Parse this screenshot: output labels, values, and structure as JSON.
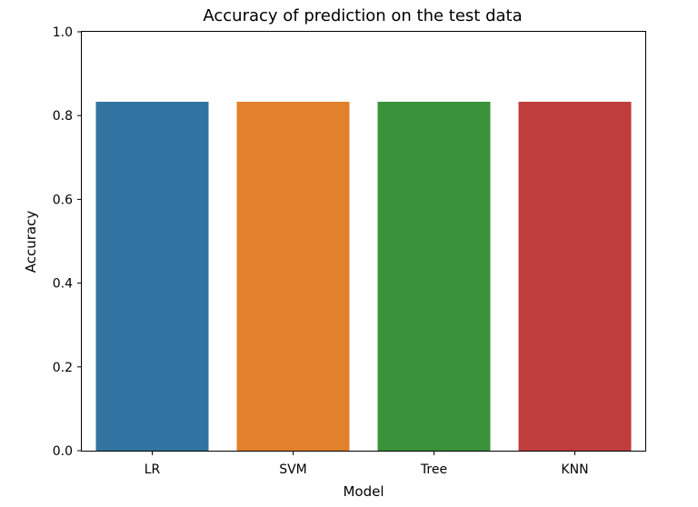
{
  "chart_data": {
    "type": "bar",
    "title": "Accuracy of prediction on the test data",
    "xlabel": "Model",
    "ylabel": "Accuracy",
    "categories": [
      "LR",
      "SVM",
      "Tree",
      "KNN"
    ],
    "values": [
      0.833,
      0.833,
      0.833,
      0.833
    ],
    "colors": [
      "#3274a1",
      "#e1812c",
      "#3a923a",
      "#c03d3e"
    ],
    "ylim": [
      0,
      1
    ],
    "yticks": [
      "0.0",
      "0.2",
      "0.4",
      "0.6",
      "0.8",
      "1.0"
    ],
    "grid": false,
    "legend": "none"
  }
}
